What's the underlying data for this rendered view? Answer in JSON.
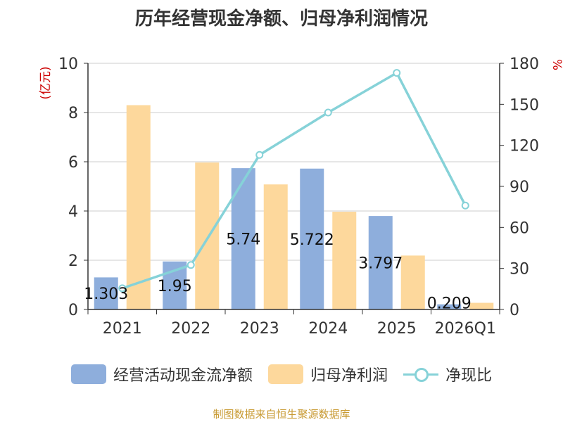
{
  "title": "历年经营现金净额、归母净利润情况",
  "source": "制图数据来自恒生聚源数据库",
  "colors": {
    "bar1": "#8eaedc",
    "bar2": "#fdd89c",
    "line": "#86d2d8",
    "axis_unit": "#cc0000",
    "source": "#c89a32",
    "grid": "#cccccc",
    "text": "#333333"
  },
  "legend": {
    "s1": "经营活动现金流净额",
    "s2": "归母净利润",
    "s3": "净现比"
  },
  "chart_data": {
    "type": "bar",
    "title": "历年经营现金净额、归母净利润情况",
    "categories": [
      "2021",
      "2022",
      "2023",
      "2024",
      "2025",
      "2026Q1"
    ],
    "series": [
      {
        "name": "经营活动现金流净额",
        "type": "bar",
        "axis": "left",
        "values": [
          1.303,
          1.95,
          5.74,
          5.722,
          3.797,
          0.209
        ],
        "labels": [
          "1.303",
          "1.95",
          "5.74",
          "5.722",
          "3.797",
          "0.209"
        ]
      },
      {
        "name": "归母净利润",
        "type": "bar",
        "axis": "left",
        "values": [
          8.3,
          5.97,
          5.08,
          3.97,
          2.19,
          0.27
        ]
      },
      {
        "name": "净现比",
        "type": "line",
        "axis": "right",
        "values": [
          15.5,
          32.5,
          113,
          144,
          173,
          76
        ]
      }
    ],
    "ylabel": "(亿元)",
    "ylim": [
      0,
      10
    ],
    "yticks": [
      "0",
      "2",
      "4",
      "6",
      "8",
      "10"
    ],
    "y2label": "%",
    "y2lim": [
      0,
      180
    ],
    "y2ticks": [
      "0",
      "30",
      "60",
      "90",
      "120",
      "150",
      "180"
    ],
    "grid": true,
    "legend_position": "bottom"
  }
}
